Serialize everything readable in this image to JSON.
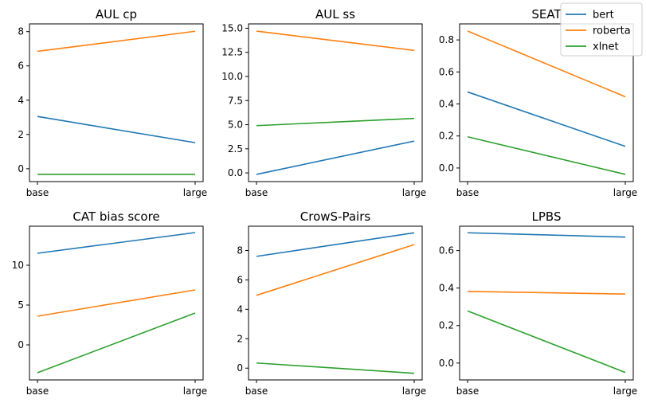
{
  "chart_data": [
    {
      "type": "line",
      "title": "AUL cp",
      "categories": [
        "base",
        "large"
      ],
      "yticks": [
        0,
        2,
        4,
        6,
        8
      ],
      "ylim": [
        -0.75,
        8.45
      ],
      "series": [
        {
          "name": "bert",
          "values": [
            3.05,
            1.52
          ]
        },
        {
          "name": "roberta",
          "values": [
            6.85,
            8.02
          ]
        },
        {
          "name": "xlnet",
          "values": [
            -0.33,
            -0.33
          ]
        }
      ]
    },
    {
      "type": "line",
      "title": "AUL ss",
      "categories": [
        "base",
        "large"
      ],
      "yticks": [
        0.0,
        2.5,
        5.0,
        7.5,
        10.0,
        12.5,
        15.0
      ],
      "ytick_labels": [
        "0.0",
        "2.5",
        "5.0",
        "7.5",
        "10.0",
        "12.5",
        "15.0"
      ],
      "ylim": [
        -0.9,
        15.45
      ],
      "series": [
        {
          "name": "bert",
          "values": [
            -0.15,
            3.3
          ]
        },
        {
          "name": "roberta",
          "values": [
            14.7,
            12.7
          ]
        },
        {
          "name": "xlnet",
          "values": [
            4.9,
            5.65
          ]
        }
      ]
    },
    {
      "type": "line",
      "title": "SEAT",
      "categories": [
        "base",
        "large"
      ],
      "yticks": [
        0.0,
        0.2,
        0.4,
        0.6,
        0.8
      ],
      "ytick_labels": [
        "0.0",
        "0.2",
        "0.4",
        "0.6",
        "0.8"
      ],
      "ylim": [
        -0.085,
        0.9
      ],
      "series": [
        {
          "name": "bert",
          "values": [
            0.475,
            0.135
          ]
        },
        {
          "name": "roberta",
          "values": [
            0.855,
            0.445
          ]
        },
        {
          "name": "xlnet",
          "values": [
            0.195,
            -0.04
          ]
        }
      ]
    },
    {
      "type": "line",
      "title": "CAT bias score",
      "categories": [
        "base",
        "large"
      ],
      "yticks": [
        0,
        5,
        10
      ],
      "ylim": [
        -4.4,
        14.9
      ],
      "series": [
        {
          "name": "bert",
          "values": [
            11.5,
            14.1
          ]
        },
        {
          "name": "roberta",
          "values": [
            3.6,
            6.9
          ]
        },
        {
          "name": "xlnet",
          "values": [
            -3.5,
            4.0
          ]
        }
      ]
    },
    {
      "type": "line",
      "title": "CrowS-Pairs",
      "categories": [
        "base",
        "large"
      ],
      "yticks": [
        0,
        2,
        4,
        6,
        8
      ],
      "ylim": [
        -0.8,
        9.65
      ],
      "series": [
        {
          "name": "bert",
          "values": [
            7.6,
            9.2
          ]
        },
        {
          "name": "roberta",
          "values": [
            4.95,
            8.4
          ]
        },
        {
          "name": "xlnet",
          "values": [
            0.35,
            -0.35
          ]
        }
      ]
    },
    {
      "type": "line",
      "title": "LPBS",
      "categories": [
        "base",
        "large"
      ],
      "yticks": [
        0.0,
        0.2,
        0.4,
        0.6
      ],
      "ytick_labels": [
        "0.0",
        "0.2",
        "0.4",
        "0.6"
      ],
      "ylim": [
        -0.09,
        0.73
      ],
      "series": [
        {
          "name": "bert",
          "values": [
            0.695,
            0.672
          ]
        },
        {
          "name": "roberta",
          "values": [
            0.382,
            0.368
          ]
        },
        {
          "name": "xlnet",
          "values": [
            0.278,
            -0.05
          ]
        }
      ]
    }
  ],
  "legend": {
    "entries": [
      "bert",
      "roberta",
      "xlnet"
    ],
    "placement": "top-right"
  },
  "colors": {
    "bert": "#1f77b4",
    "roberta": "#ff7f0e",
    "xlnet": "#2ca02c"
  }
}
